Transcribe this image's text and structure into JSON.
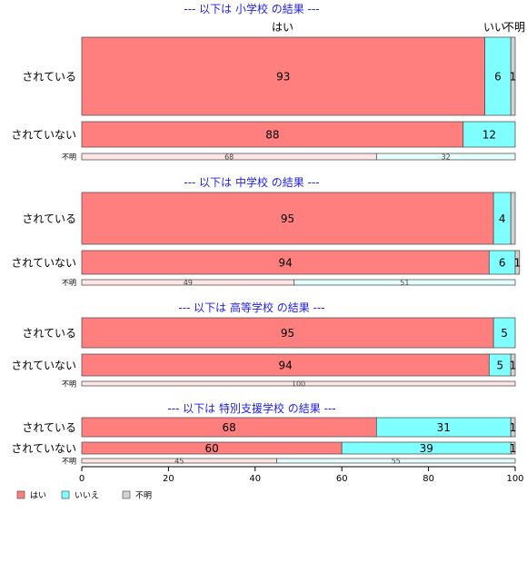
{
  "chart_data": {
    "type": "bar",
    "orientation": "horizontal",
    "stacked": true,
    "xlim": [
      0,
      100
    ],
    "x_ticks": [
      "0",
      "20",
      "40",
      "60",
      "80",
      "100"
    ],
    "legend": {
      "placement": "bottom-left",
      "items": [
        {
          "label": "はい",
          "color": "#FF7F7F"
        },
        {
          "label": "いいえ",
          "color": "#7FFFFF"
        },
        {
          "label": "不明",
          "color": "#D3D3D3"
        }
      ]
    },
    "top_column_labels": [
      "はい",
      "いい",
      "不明"
    ],
    "panels": [
      {
        "title": "--- 以下は 小学校 の結果 ---",
        "rows": [
          {
            "label": "されている",
            "values": [
              93,
              6,
              1
            ],
            "labels": [
              "93",
              "6",
              "1"
            ]
          },
          {
            "label": "されていない",
            "values": [
              88,
              12,
              0
            ],
            "labels": [
              "88",
              "12",
              ""
            ]
          },
          {
            "label": "不明",
            "values": [
              68,
              32,
              0
            ],
            "labels": [
              "68",
              "32",
              ""
            ]
          }
        ]
      },
      {
        "title": "--- 以下は 中学校 の結果 ---",
        "rows": [
          {
            "label": "されている",
            "values": [
              95,
              4,
              1
            ],
            "labels": [
              "95",
              "4",
              ""
            ]
          },
          {
            "label": "されていない",
            "values": [
              94,
              6,
              1
            ],
            "labels": [
              "94",
              "6",
              "1"
            ]
          },
          {
            "label": "不明",
            "values": [
              49,
              51,
              0
            ],
            "labels": [
              "49",
              "51",
              ""
            ]
          }
        ]
      },
      {
        "title": "--- 以下は 高等学校 の結果 ---",
        "rows": [
          {
            "label": "されている",
            "values": [
              95,
              5,
              0
            ],
            "labels": [
              "95",
              "5",
              ""
            ]
          },
          {
            "label": "されていない",
            "values": [
              94,
              5,
              1
            ],
            "labels": [
              "94",
              "5",
              "1"
            ]
          },
          {
            "label": "不明",
            "values": [
              100,
              0,
              0
            ],
            "labels": [
              "100",
              "",
              ""
            ]
          }
        ]
      },
      {
        "title": "--- 以下は 特別支援学校 の結果 ---",
        "rows": [
          {
            "label": "されている",
            "values": [
              68,
              31,
              1
            ],
            "labels": [
              "68",
              "31",
              "1"
            ]
          },
          {
            "label": "されていない",
            "values": [
              60,
              39,
              1
            ],
            "labels": [
              "60",
              "39",
              "1"
            ]
          },
          {
            "label": "不明",
            "values": [
              45,
              55,
              0
            ],
            "labels": [
              "45",
              "55",
              ""
            ]
          }
        ]
      }
    ]
  }
}
